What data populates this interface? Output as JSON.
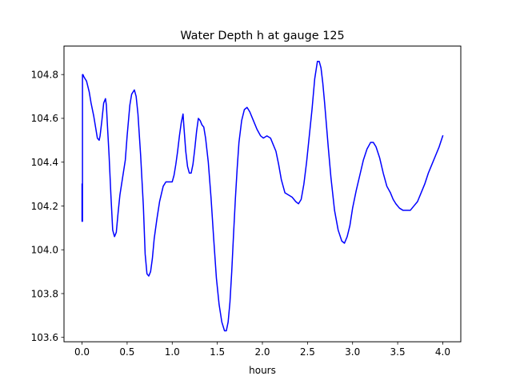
{
  "chart_data": {
    "type": "line",
    "title": "Water Depth h at gauge 125",
    "xlabel": "hours",
    "ylabel": "",
    "xlim": [
      -0.2,
      4.2
    ],
    "ylim": [
      103.58,
      104.93
    ],
    "xticks": [
      0.0,
      0.5,
      1.0,
      1.5,
      2.0,
      2.5,
      3.0,
      3.5,
      4.0
    ],
    "xtick_labels": [
      "0.0",
      "0.5",
      "1.0",
      "1.5",
      "2.0",
      "2.5",
      "3.0",
      "3.5",
      "4.0"
    ],
    "yticks": [
      103.6,
      103.8,
      104.0,
      104.2,
      104.4,
      104.6,
      104.8
    ],
    "ytick_labels": [
      "103.6",
      "103.8",
      "104.0",
      "104.2",
      "104.4",
      "104.6",
      "104.8"
    ],
    "grid": false,
    "legend": false,
    "series": [
      {
        "color": "#0000ff",
        "x": [
          0.0,
          0.0,
          0.005,
          0.005,
          0.01,
          0.02,
          0.05,
          0.08,
          0.1,
          0.13,
          0.15,
          0.17,
          0.19,
          0.2,
          0.22,
          0.24,
          0.26,
          0.27,
          0.28,
          0.3,
          0.32,
          0.34,
          0.36,
          0.38,
          0.4,
          0.42,
          0.45,
          0.48,
          0.5,
          0.53,
          0.55,
          0.58,
          0.6,
          0.62,
          0.65,
          0.68,
          0.7,
          0.72,
          0.74,
          0.76,
          0.78,
          0.8,
          0.83,
          0.86,
          0.9,
          0.93,
          0.96,
          1.0,
          1.02,
          1.04,
          1.06,
          1.08,
          1.1,
          1.12,
          1.13,
          1.15,
          1.17,
          1.19,
          1.21,
          1.23,
          1.25,
          1.27,
          1.29,
          1.31,
          1.33,
          1.35,
          1.37,
          1.4,
          1.43,
          1.46,
          1.49,
          1.52,
          1.55,
          1.58,
          1.6,
          1.62,
          1.64,
          1.66,
          1.68,
          1.7,
          1.72,
          1.74,
          1.77,
          1.8,
          1.83,
          1.86,
          1.9,
          1.94,
          1.98,
          2.01,
          2.05,
          2.09,
          2.12,
          2.15,
          2.18,
          2.21,
          2.25,
          2.29,
          2.33,
          2.37,
          2.4,
          2.43,
          2.46,
          2.49,
          2.52,
          2.55,
          2.58,
          2.61,
          2.63,
          2.65,
          2.67,
          2.69,
          2.71,
          2.73,
          2.76,
          2.8,
          2.84,
          2.88,
          2.91,
          2.94,
          2.97,
          3.0,
          3.04,
          3.08,
          3.12,
          3.16,
          3.2,
          3.23,
          3.26,
          3.3,
          3.34,
          3.38,
          3.42,
          3.45,
          3.48,
          3.52,
          3.56,
          3.6,
          3.64,
          3.68,
          3.72,
          3.76,
          3.8,
          3.84,
          3.88,
          3.92,
          3.96,
          4.0
        ],
        "y": [
          104.3,
          104.13,
          104.13,
          104.8,
          104.8,
          104.79,
          104.77,
          104.72,
          104.67,
          104.61,
          104.56,
          104.51,
          104.5,
          104.52,
          104.59,
          104.67,
          104.69,
          104.66,
          104.58,
          104.43,
          104.25,
          104.09,
          104.06,
          104.08,
          104.17,
          104.25,
          104.33,
          104.41,
          104.52,
          104.66,
          104.71,
          104.73,
          104.7,
          104.62,
          104.43,
          104.2,
          103.98,
          103.89,
          103.88,
          103.9,
          103.96,
          104.05,
          104.14,
          104.22,
          104.29,
          104.31,
          104.31,
          104.31,
          104.34,
          104.39,
          104.45,
          104.52,
          104.58,
          104.62,
          104.56,
          104.45,
          104.38,
          104.35,
          104.35,
          104.39,
          104.46,
          104.54,
          104.6,
          104.59,
          104.57,
          104.56,
          104.51,
          104.4,
          104.24,
          104.05,
          103.87,
          103.75,
          103.67,
          103.63,
          103.63,
          103.67,
          103.76,
          103.9,
          104.07,
          104.23,
          104.37,
          104.49,
          104.59,
          104.64,
          104.65,
          104.63,
          104.59,
          104.55,
          104.52,
          104.51,
          104.52,
          104.51,
          104.48,
          104.45,
          104.39,
          104.32,
          104.26,
          104.25,
          104.24,
          104.22,
          104.21,
          104.23,
          104.3,
          104.4,
          104.52,
          104.64,
          104.78,
          104.86,
          104.86,
          104.83,
          104.76,
          104.67,
          104.57,
          104.47,
          104.33,
          104.18,
          104.09,
          104.04,
          104.03,
          104.06,
          104.11,
          104.19,
          104.27,
          104.34,
          104.41,
          104.46,
          104.49,
          104.49,
          104.47,
          104.42,
          104.35,
          104.29,
          104.26,
          104.23,
          104.21,
          104.19,
          104.18,
          104.18,
          104.18,
          104.2,
          104.22,
          104.26,
          104.3,
          104.35,
          104.39,
          104.43,
          104.47,
          104.52
        ]
      }
    ]
  }
}
